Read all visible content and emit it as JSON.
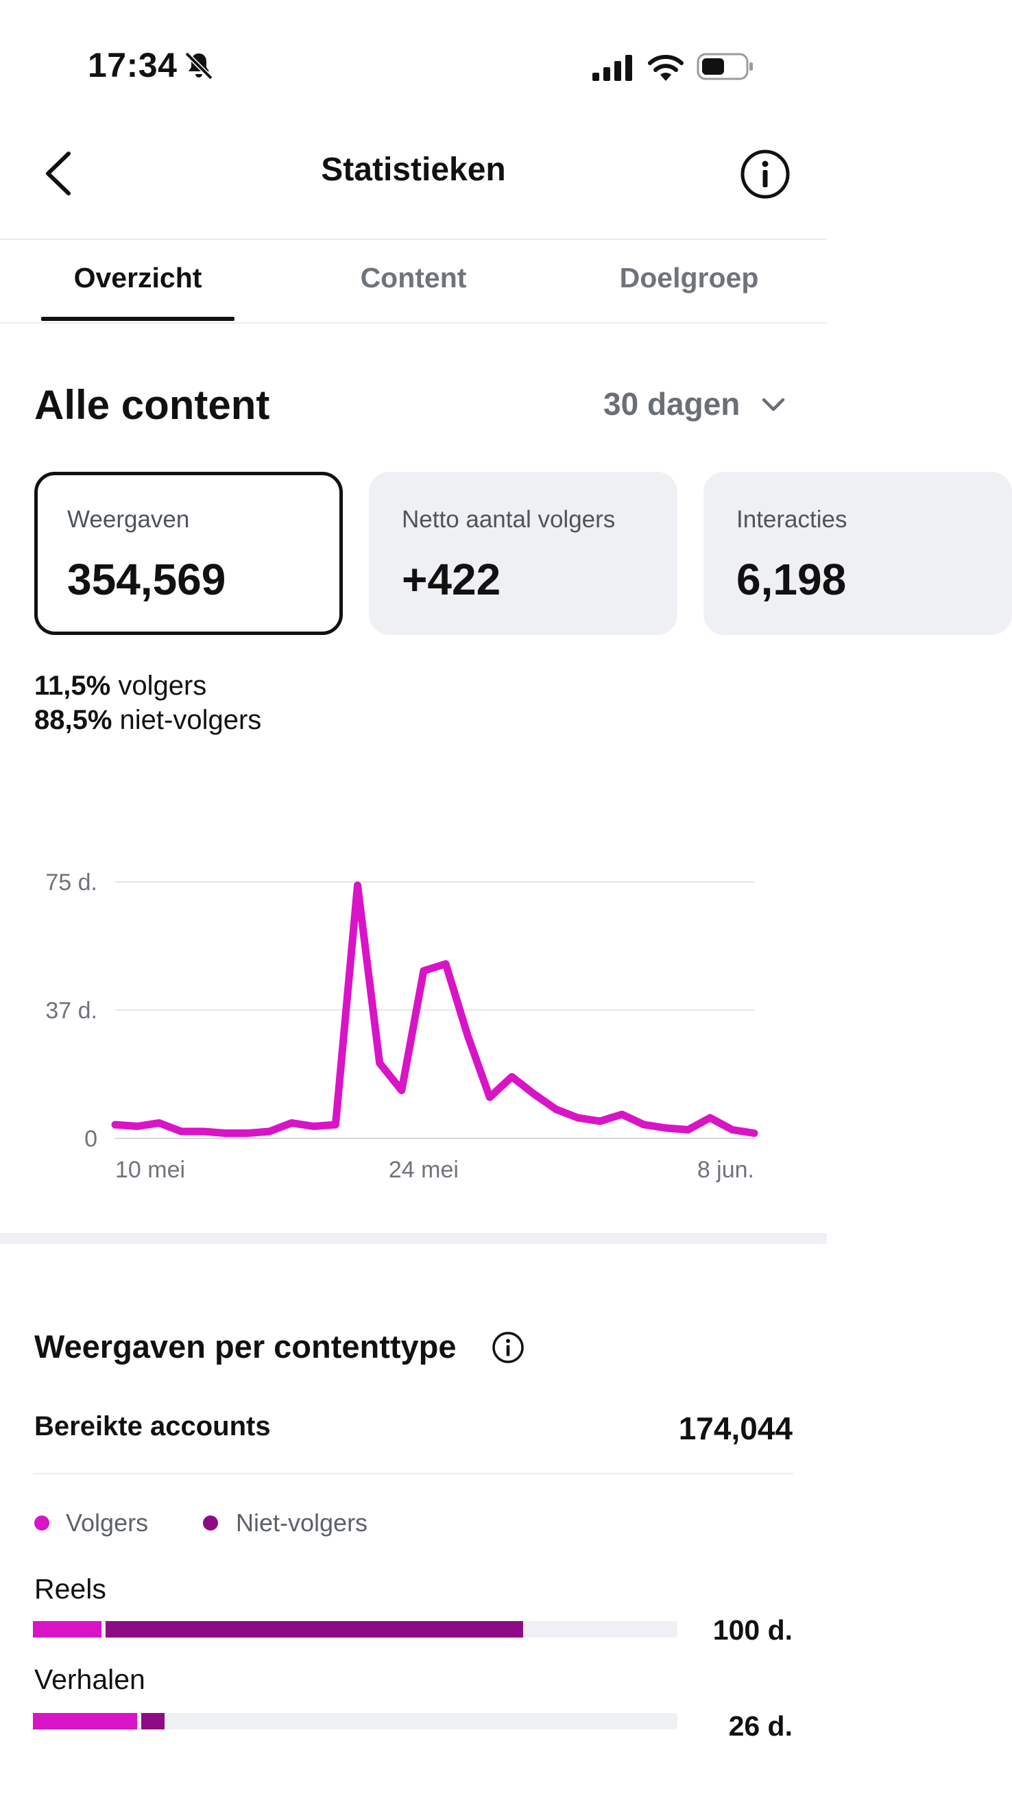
{
  "status_bar": {
    "time": "17:34",
    "icons": [
      "bell-slash-icon",
      "cellular-signal-icon",
      "wifi-icon",
      "battery-icon"
    ]
  },
  "nav": {
    "title": "Statistieken",
    "back_icon": "chevron-left-icon",
    "info_icon": "info-icon"
  },
  "tabs": [
    {
      "label": "Overzicht",
      "active": true
    },
    {
      "label": "Content",
      "active": false
    },
    {
      "label": "Doelgroep",
      "active": false
    }
  ],
  "overview": {
    "heading": "Alle content",
    "date_range": "30 dagen",
    "cards": [
      {
        "label": "Weergaven",
        "value": "354,569",
        "selected": true
      },
      {
        "label": "Netto aantal volgers",
        "value": "+422",
        "selected": false
      },
      {
        "label": "Interacties",
        "value": "6,198",
        "selected": false
      }
    ],
    "split": [
      {
        "pct": "11,5%",
        "label": " volgers"
      },
      {
        "pct": "88,5%",
        "label": " niet-volgers"
      }
    ]
  },
  "chart_data": {
    "type": "line",
    "y_tick_labels": [
      "75 d.",
      "37 d.",
      "0"
    ],
    "y_ticks": [
      75,
      37.5,
      0
    ],
    "ylim": [
      0,
      75
    ],
    "x_tick_labels": [
      "10 mei",
      "24 mei",
      "8 jun."
    ],
    "x_tick_positions": [
      0,
      14,
      29
    ],
    "grid": true,
    "color": "#d914c7",
    "series": [
      {
        "values": [
          4,
          3.5,
          4.5,
          2,
          2,
          1.5,
          1.5,
          2,
          4.5,
          3.5,
          4,
          74,
          22,
          14,
          49,
          51,
          30,
          12,
          18,
          13,
          8.5,
          6,
          5,
          7,
          4,
          3,
          2.5,
          6,
          2.5,
          1.5
        ]
      }
    ]
  },
  "content_type": {
    "heading": "Weergaven per contenttype",
    "info_icon": "info-icon",
    "reached_label": "Bereikte accounts",
    "reached_value": "174,044",
    "legend": [
      {
        "label": "Volgers",
        "color": "#d914c7"
      },
      {
        "label": "Niet-volgers",
        "color": "#8f0a85"
      }
    ],
    "rows": [
      {
        "label": "Reels",
        "value": "100 d.",
        "followers_fraction": 0.106,
        "nonfollowers_fraction": 0.648
      },
      {
        "label": "Verhalen",
        "value": "26 d.",
        "followers_fraction": 0.162,
        "nonfollowers_fraction": 0.036
      }
    ]
  }
}
